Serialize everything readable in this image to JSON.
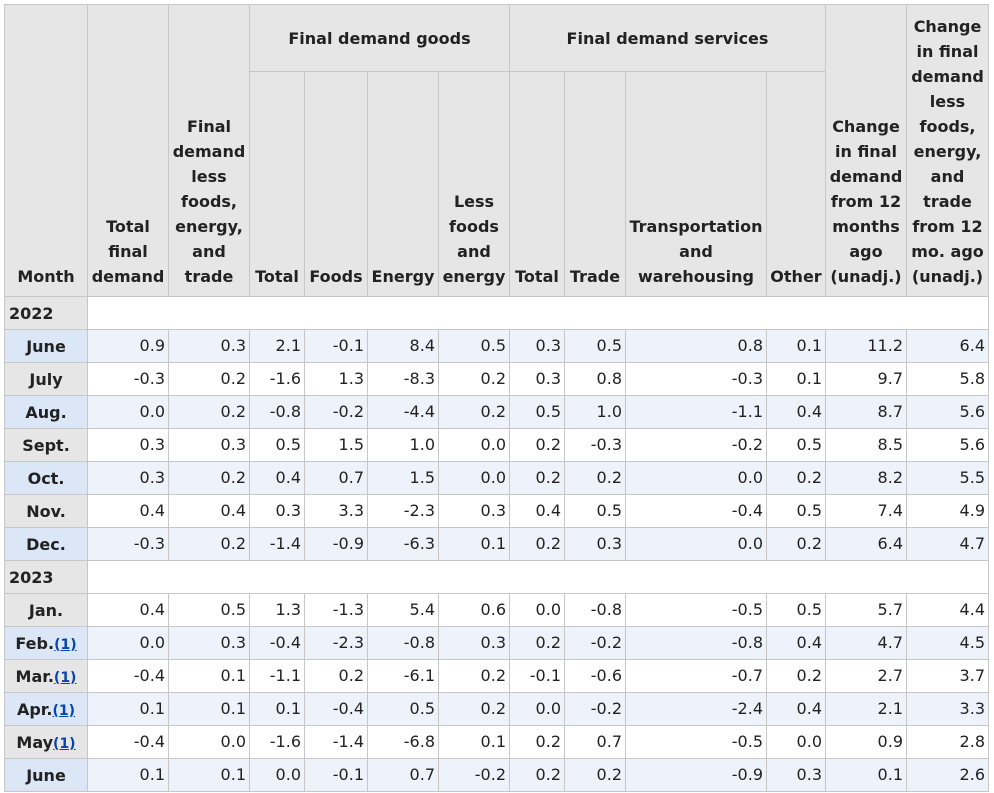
{
  "headers": {
    "month": "Month",
    "total_final_demand": "Total final demand",
    "fd_less": "Final demand less foods, energy, and trade",
    "goods_group": "Final demand goods",
    "services_group": "Final demand services",
    "goods_total": "Total",
    "goods_foods": "Foods",
    "goods_energy": "Energy",
    "goods_less": "Less foods and energy",
    "serv_total": "Total",
    "serv_trade": "Trade",
    "serv_transport": "Transportation and warehousing",
    "serv_other": "Other",
    "change_12m": "Change in final demand from 12 months ago (unadj.)",
    "change_less_12m": "Change in final demand less foods, energy, and trade from 12 mo. ago (unadj.)"
  },
  "rows": [
    {
      "type": "year",
      "label": "2022"
    },
    {
      "type": "data",
      "month": "June",
      "fn": "",
      "values": [
        "0.9",
        "0.3",
        "2.1",
        "-0.1",
        "8.4",
        "0.5",
        "0.3",
        "0.5",
        "0.8",
        "0.1",
        "11.2",
        "6.4"
      ]
    },
    {
      "type": "data",
      "month": "July",
      "fn": "",
      "values": [
        "-0.3",
        "0.2",
        "-1.6",
        "1.3",
        "-8.3",
        "0.2",
        "0.3",
        "0.8",
        "-0.3",
        "0.1",
        "9.7",
        "5.8"
      ]
    },
    {
      "type": "data",
      "month": "Aug.",
      "fn": "",
      "values": [
        "0.0",
        "0.2",
        "-0.8",
        "-0.2",
        "-4.4",
        "0.2",
        "0.5",
        "1.0",
        "-1.1",
        "0.4",
        "8.7",
        "5.6"
      ]
    },
    {
      "type": "data",
      "month": "Sept.",
      "fn": "",
      "values": [
        "0.3",
        "0.3",
        "0.5",
        "1.5",
        "1.0",
        "0.0",
        "0.2",
        "-0.3",
        "-0.2",
        "0.5",
        "8.5",
        "5.6"
      ]
    },
    {
      "type": "data",
      "month": "Oct.",
      "fn": "",
      "values": [
        "0.3",
        "0.2",
        "0.4",
        "0.7",
        "1.5",
        "0.0",
        "0.2",
        "0.2",
        "0.0",
        "0.2",
        "8.2",
        "5.5"
      ]
    },
    {
      "type": "data",
      "month": "Nov.",
      "fn": "",
      "values": [
        "0.4",
        "0.4",
        "0.3",
        "3.3",
        "-2.3",
        "0.3",
        "0.4",
        "0.5",
        "-0.4",
        "0.5",
        "7.4",
        "4.9"
      ]
    },
    {
      "type": "data",
      "month": "Dec.",
      "fn": "",
      "values": [
        "-0.3",
        "0.2",
        "-1.4",
        "-0.9",
        "-6.3",
        "0.1",
        "0.2",
        "0.3",
        "0.0",
        "0.2",
        "6.4",
        "4.7"
      ]
    },
    {
      "type": "year",
      "label": "2023"
    },
    {
      "type": "data",
      "month": "Jan.",
      "fn": "",
      "values": [
        "0.4",
        "0.5",
        "1.3",
        "-1.3",
        "5.4",
        "0.6",
        "0.0",
        "-0.8",
        "-0.5",
        "0.5",
        "5.7",
        "4.4"
      ]
    },
    {
      "type": "data",
      "month": "Feb.",
      "fn": "(1)",
      "values": [
        "0.0",
        "0.3",
        "-0.4",
        "-2.3",
        "-0.8",
        "0.3",
        "0.2",
        "-0.2",
        "-0.8",
        "0.4",
        "4.7",
        "4.5"
      ]
    },
    {
      "type": "data",
      "month": "Mar.",
      "fn": "(1)",
      "values": [
        "-0.4",
        "0.1",
        "-1.1",
        "0.2",
        "-6.1",
        "0.2",
        "-0.1",
        "-0.6",
        "-0.7",
        "0.2",
        "2.7",
        "3.7"
      ]
    },
    {
      "type": "data",
      "month": "Apr.",
      "fn": "(1)",
      "values": [
        "0.1",
        "0.1",
        "0.1",
        "-0.4",
        "0.5",
        "0.2",
        "0.0",
        "-0.2",
        "-2.4",
        "0.4",
        "2.1",
        "3.3"
      ]
    },
    {
      "type": "data",
      "month": "May",
      "fn": "(1)",
      "values": [
        "-0.4",
        "0.0",
        "-1.6",
        "-1.4",
        "-6.8",
        "0.1",
        "0.2",
        "0.7",
        "-0.5",
        "0.0",
        "0.9",
        "2.8"
      ]
    },
    {
      "type": "data",
      "month": "June",
      "fn": "",
      "values": [
        "0.1",
        "0.1",
        "0.0",
        "-0.1",
        "0.7",
        "-0.2",
        "0.2",
        "0.2",
        "-0.9",
        "0.3",
        "0.1",
        "2.6"
      ]
    }
  ]
}
